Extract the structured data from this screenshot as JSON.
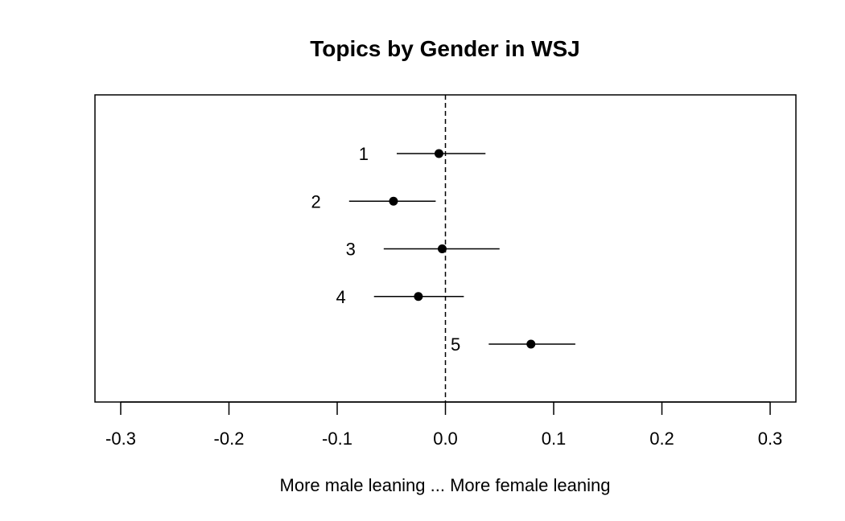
{
  "chart_data": {
    "type": "scatter",
    "title": "Topics by Gender in WSJ",
    "xlabel": "More male leaning ... More female leaning",
    "ylabel": "",
    "xlim": [
      -0.3,
      0.3
    ],
    "x_ticks": [
      -0.3,
      -0.2,
      -0.1,
      0.0,
      0.1,
      0.2,
      0.3
    ],
    "x_tick_labels": [
      "-0.3",
      "-0.2",
      "-0.1",
      "0.0",
      "0.1",
      "0.2",
      "0.3"
    ],
    "reference_line": {
      "x": 0.0,
      "style": "dashed"
    },
    "grid": false,
    "points": [
      {
        "label": "1",
        "estimate": -0.006,
        "lower": -0.045,
        "upper": 0.037
      },
      {
        "label": "2",
        "estimate": -0.048,
        "lower": -0.089,
        "upper": -0.009
      },
      {
        "label": "3",
        "estimate": -0.003,
        "lower": -0.057,
        "upper": 0.05
      },
      {
        "label": "4",
        "estimate": -0.025,
        "lower": -0.066,
        "upper": 0.017
      },
      {
        "label": "5",
        "estimate": 0.079,
        "lower": 0.04,
        "upper": 0.12
      }
    ],
    "colors": {
      "point": "#000000",
      "line": "#000000"
    }
  }
}
